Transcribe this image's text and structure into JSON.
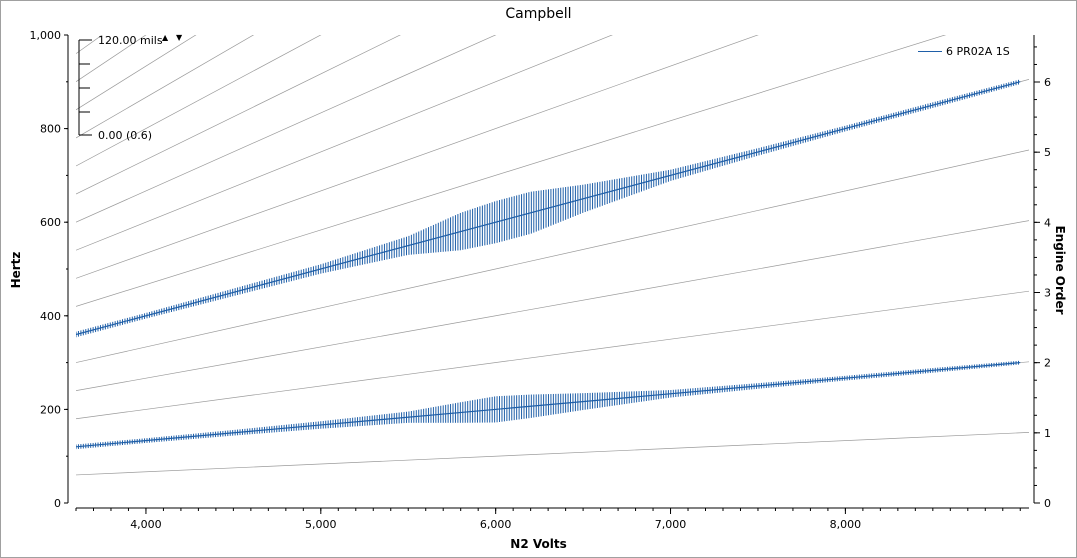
{
  "chart_data": {
    "type": "line",
    "title": "Campbell",
    "xlabel": "N2 Volts",
    "ylabel": "Hertz",
    "y2label": "Engine Order",
    "xlim": [
      3600,
      9050
    ],
    "ylim": [
      0,
      1000
    ],
    "y2lim": [
      0,
      6.67
    ],
    "x_ticks": [
      4000,
      5000,
      6000,
      7000,
      8000
    ],
    "x_tick_labels": [
      "4,000",
      "5,000",
      "6,000",
      "7,000",
      "8,000"
    ],
    "y_ticks": [
      0,
      200,
      400,
      600,
      800,
      1000
    ],
    "y_tick_labels": [
      "0",
      "200",
      "400",
      "600",
      "800",
      "1,000"
    ],
    "y2_ticks": [
      0,
      1,
      2,
      3,
      4,
      5,
      6
    ],
    "y2_tick_labels": [
      "0",
      "1",
      "2",
      "3",
      "4",
      "5",
      "6"
    ],
    "grid": false,
    "legend_position": "top-right",
    "order_lines": {
      "max_order": 30,
      "hz_per_volt_per_order": 0.01667
    },
    "series": [
      {
        "name": "6 PR02A 1S",
        "color": "#1f5fa8",
        "order": 6,
        "x": [
          3600,
          4000,
          4500,
          5000,
          5500,
          5800,
          6000,
          6200,
          6500,
          7000,
          7500,
          8000,
          8500,
          9000
        ],
        "amplitude": [
          6,
          6,
          8,
          10,
          20,
          40,
          45,
          45,
          30,
          12,
          8,
          6,
          6,
          5
        ]
      },
      {
        "order": 2,
        "color": "#1f5fa8",
        "x": [
          3600,
          4000,
          4500,
          5000,
          5500,
          5800,
          6000,
          6200,
          6500,
          7000,
          7500,
          8000,
          8500,
          9000
        ],
        "amplitude": [
          5,
          5,
          6,
          8,
          12,
          22,
          28,
          25,
          18,
          8,
          6,
          5,
          5,
          4
        ]
      }
    ]
  },
  "scale": {
    "top_label": "120.00 mils",
    "bottom_label": "0.00 (0.6)",
    "up_arrow": "▲",
    "down_arrow": "▼"
  }
}
